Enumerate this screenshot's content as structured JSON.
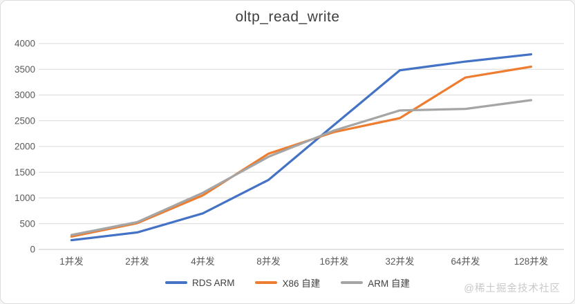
{
  "title": "oltp_read_write",
  "watermark": "@稀土掘金技术社区",
  "chart_data": {
    "type": "line",
    "title": "oltp_read_write",
    "xlabel": "",
    "ylabel": "",
    "categories": [
      "1并发",
      "2并发",
      "4并发",
      "8并发",
      "16并发",
      "32并发",
      "64并发",
      "128并发"
    ],
    "series": [
      {
        "name": "RDS ARM",
        "color": "#4472C4",
        "values": [
          180,
          330,
          700,
          1350,
          2420,
          3480,
          3650,
          3790
        ]
      },
      {
        "name": "X86 自建",
        "color": "#ED7D31",
        "values": [
          250,
          510,
          1050,
          1860,
          2280,
          2550,
          3340,
          3550
        ]
      },
      {
        "name": "ARM 自建",
        "color": "#A5A5A5",
        "values": [
          280,
          530,
          1100,
          1800,
          2310,
          2700,
          2730,
          2900
        ]
      }
    ],
    "ylim": [
      0,
      4000
    ],
    "ytick_step": 500,
    "y_ticks": [
      0,
      500,
      1000,
      1500,
      2000,
      2500,
      3000,
      3500,
      4000
    ],
    "grid": true,
    "legend_position": "bottom"
  },
  "colors": {
    "grid": "#D9D9D9",
    "axis": "#C6C6C6",
    "tick_label": "#595959",
    "title": "#404040",
    "watermark": "#C9C9C9",
    "background": "#FFFFFF"
  }
}
